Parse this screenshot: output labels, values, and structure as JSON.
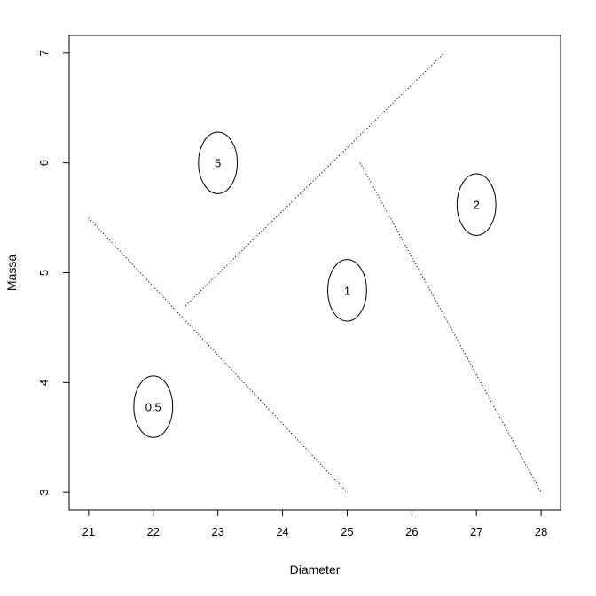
{
  "chart_data": {
    "type": "scatter",
    "xlabel": "Diameter",
    "ylabel": "Massa",
    "xlim": [
      20.7,
      28.3
    ],
    "ylim": [
      2.84,
      7.16
    ],
    "x_ticks": [
      {
        "value": 21,
        "label": "21"
      },
      {
        "value": 22,
        "label": "22"
      },
      {
        "value": 23,
        "label": "23"
      },
      {
        "value": 24,
        "label": "24"
      },
      {
        "value": 25,
        "label": "25"
      },
      {
        "value": 26,
        "label": "26"
      },
      {
        "value": 27,
        "label": "27"
      },
      {
        "value": 28,
        "label": "28"
      }
    ],
    "y_ticks": [
      {
        "value": 3,
        "label": "3"
      },
      {
        "value": 4,
        "label": "4"
      },
      {
        "value": 5,
        "label": "5"
      },
      {
        "value": 6,
        "label": "6"
      },
      {
        "value": 7,
        "label": "7"
      }
    ],
    "points": [
      {
        "x": 22,
        "y": 3.78,
        "label": "0.5",
        "rx": 0.3,
        "ry": 0.28
      },
      {
        "x": 23,
        "y": 6.0,
        "label": "5",
        "rx": 0.3,
        "ry": 0.28
      },
      {
        "x": 25,
        "y": 4.84,
        "label": "1",
        "rx": 0.3,
        "ry": 0.28
      },
      {
        "x": 27,
        "y": 5.62,
        "label": "2",
        "rx": 0.3,
        "ry": 0.28
      }
    ],
    "boundaries": [
      {
        "x": [
          21.0,
          25.0
        ],
        "y": [
          5.5,
          3.0
        ],
        "style": "dotted"
      },
      {
        "x": [
          22.5,
          26.5
        ],
        "y": [
          4.7,
          7.0
        ],
        "style": "dotted"
      },
      {
        "x": [
          25.2,
          28.0
        ],
        "y": [
          6.0,
          3.0
        ],
        "style": "dotted"
      }
    ],
    "grid": false,
    "legend": "none",
    "colors": {
      "foreground": "#000000",
      "background": "#ffffff"
    }
  }
}
